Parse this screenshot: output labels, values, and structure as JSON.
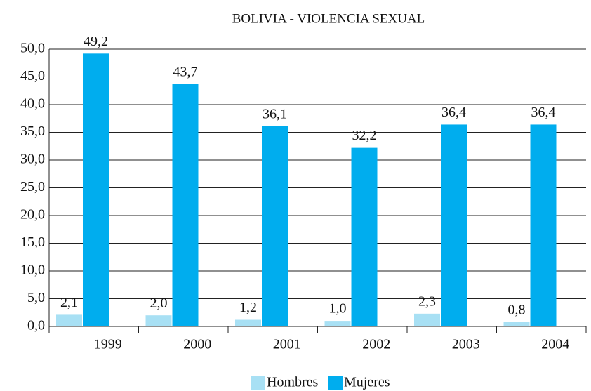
{
  "chart_data": {
    "type": "bar",
    "title": "BOLIVIA - VIOLENCIA SEXUAL",
    "categories": [
      "1999",
      "2000",
      "2001",
      "2002",
      "2003",
      "2004"
    ],
    "series": [
      {
        "name": "Hombres",
        "color": "#a8e0f4",
        "values": [
          2.1,
          2.0,
          1.2,
          1.0,
          2.3,
          0.8
        ],
        "value_labels": [
          "2,1",
          "2,0",
          "1,2",
          "1,0",
          "2,3",
          "0,8"
        ]
      },
      {
        "name": "Mujeres",
        "color": "#00adee",
        "values": [
          49.2,
          43.7,
          36.1,
          32.2,
          36.4,
          36.4
        ],
        "value_labels": [
          "49,2",
          "43,7",
          "36,1",
          "32,2",
          "36,4",
          "36,4"
        ]
      }
    ],
    "ylim": [
      0,
      50
    ],
    "yticks": [
      {
        "value": 0,
        "label": "0,0"
      },
      {
        "value": 5,
        "label": "5,0"
      },
      {
        "value": 10,
        "label": "10,0"
      },
      {
        "value": 15,
        "label": "15,0"
      },
      {
        "value": 20,
        "label": "20,0"
      },
      {
        "value": 25,
        "label": "25,0"
      },
      {
        "value": 30,
        "label": "30,0"
      },
      {
        "value": 35,
        "label": "35,0"
      },
      {
        "value": 40,
        "label": "40,0"
      },
      {
        "value": 45,
        "label": "45,0"
      },
      {
        "value": 50,
        "label": "50,0"
      }
    ],
    "grid": true
  }
}
